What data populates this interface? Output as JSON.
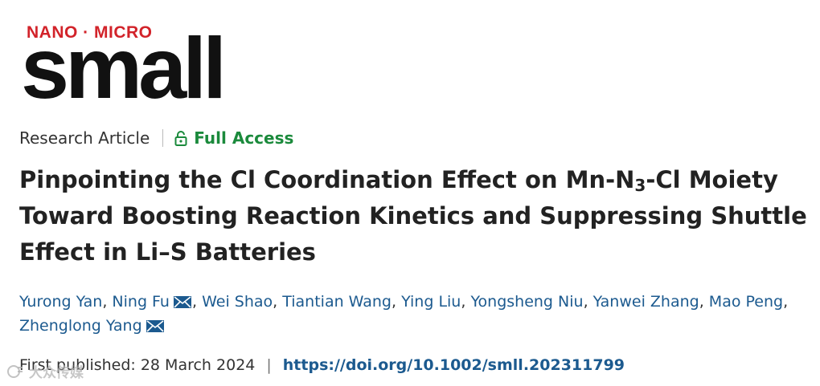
{
  "logo": {
    "prefix": "NANO · MICRO",
    "name": "small"
  },
  "meta": {
    "article_type": "Research Article",
    "access_label": "Full Access",
    "access_color": "#1b8a3c"
  },
  "title": {
    "part1": "Pinpointing the Cl Coordination Effect on Mn-N",
    "subscript": "3",
    "part2": "-Cl Moiety Toward Boosting Reaction Kinetics and Suppressing Shuttle Effect in Li–S Batteries"
  },
  "authors": [
    {
      "name": "Yurong Yan",
      "corresponding": false
    },
    {
      "name": "Ning Fu",
      "corresponding": true
    },
    {
      "name": "Wei Shao",
      "corresponding": false
    },
    {
      "name": "Tiantian Wang",
      "corresponding": false
    },
    {
      "name": "Ying Liu",
      "corresponding": false
    },
    {
      "name": "Yongsheng Niu",
      "corresponding": false
    },
    {
      "name": "Yanwei Zhang",
      "corresponding": false
    },
    {
      "name": "Mao Peng",
      "corresponding": false
    },
    {
      "name": "Zhenglong Yang",
      "corresponding": true
    }
  ],
  "publication": {
    "label": "First published:",
    "date": "28 March 2024",
    "separator": "|",
    "doi": "https://doi.org/10.1002/smll.202311799"
  },
  "watermark": {
    "text": "大众传媒"
  },
  "colors": {
    "link": "#1c5a8f",
    "logo_red": "#d2232a"
  }
}
